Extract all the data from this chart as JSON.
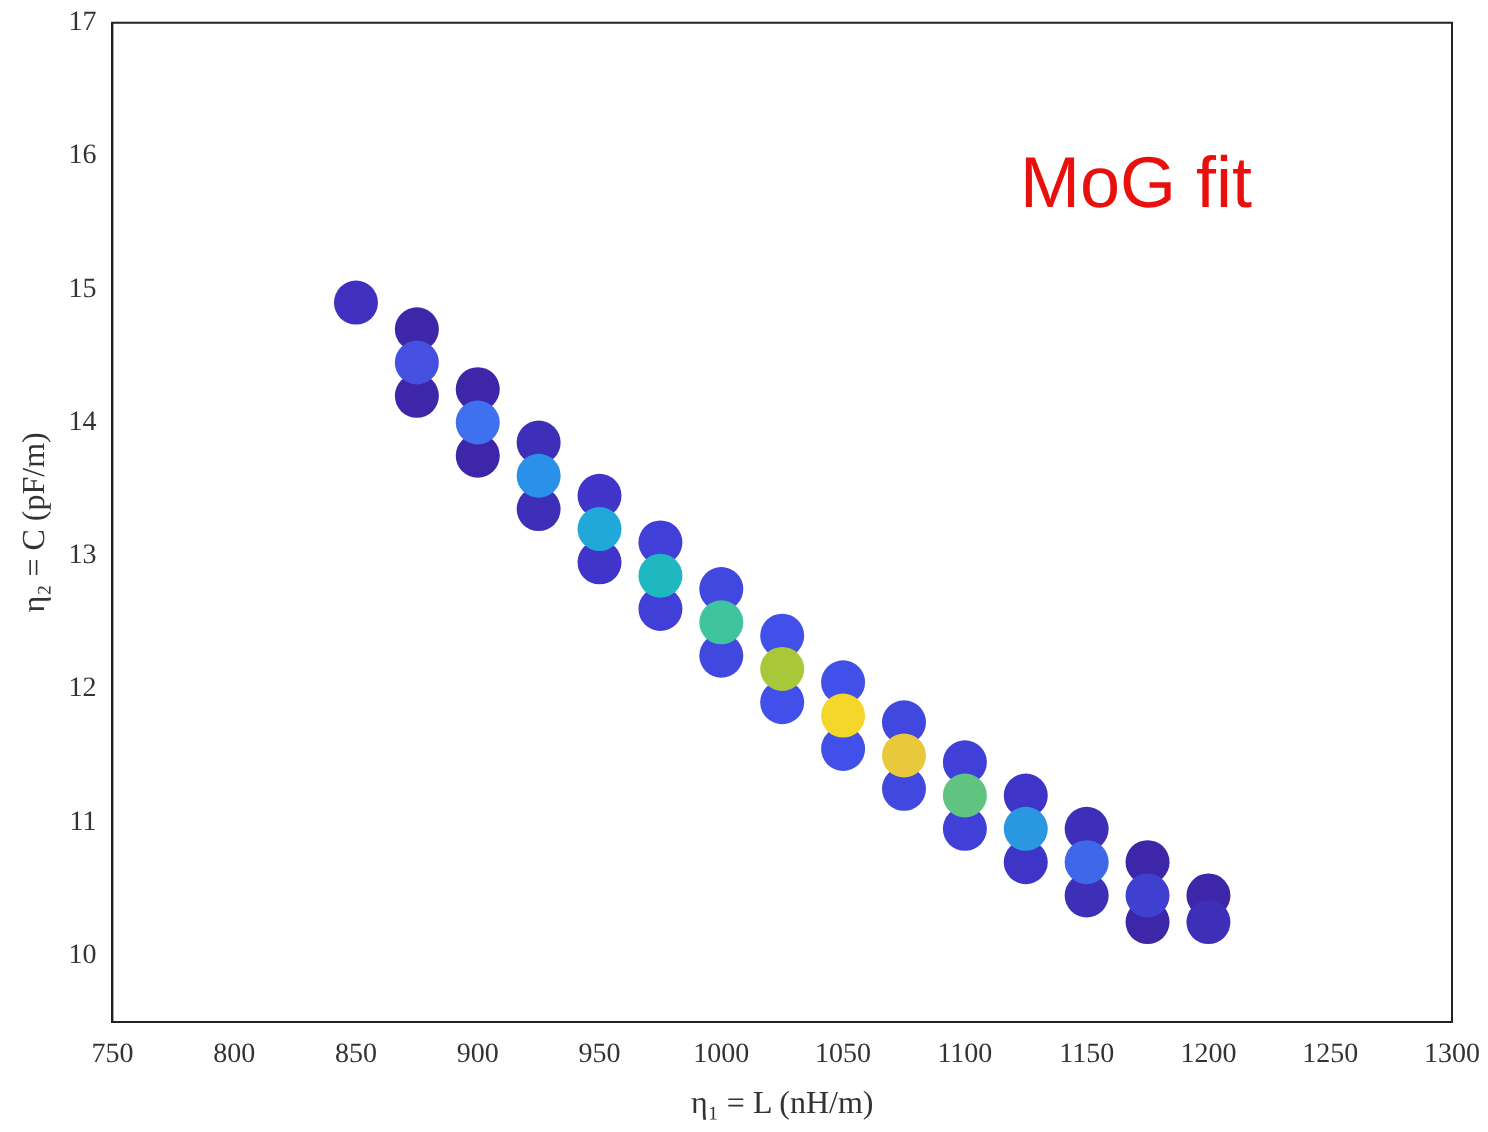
{
  "chart_data": {
    "type": "scatter",
    "xlabel": "η₁ = L (nH/m)",
    "ylabel": "η₂ = C (pF/m)",
    "annotations": [
      "MoG fit"
    ],
    "marker": "circle",
    "x": [
      875,
      900,
      925,
      950,
      975,
      1000,
      1025,
      1050,
      1075,
      1100,
      1125,
      1150,
      1175,
      1200,
      875,
      900,
      925,
      950,
      975,
      1000,
      1025,
      1050,
      1075,
      1100,
      1125,
      1150,
      1175,
      850,
      875,
      900,
      925,
      950,
      975,
      1000,
      1025,
      1050,
      1075,
      1100,
      1125,
      1150,
      1175,
      1200
    ],
    "values": [
      14.7,
      14.25,
      13.85,
      13.45,
      13.1,
      12.75,
      12.4,
      12.05,
      11.75,
      11.45,
      11.2,
      10.95,
      10.7,
      10.45,
      14.2,
      13.75,
      13.35,
      12.95,
      12.6,
      12.25,
      11.9,
      11.55,
      11.25,
      10.95,
      10.7,
      10.45,
      10.25,
      14.9,
      14.45,
      14.0,
      13.6,
      13.2,
      12.85,
      12.5,
      12.15,
      11.8,
      11.5,
      11.2,
      10.95,
      10.7,
      10.45,
      10.25
    ],
    "colors": [
      "#3e26a8",
      "#3e26a8",
      "#3e2fb8",
      "#4035c8",
      "#4040d8",
      "#4048e0",
      "#4050e8",
      "#4050e8",
      "#4048e0",
      "#4040d8",
      "#3e35c8",
      "#3e2fb8",
      "#3e26a8",
      "#3e26a8",
      "#3e26a8",
      "#3e26a8",
      "#3e2fb8",
      "#4035c8",
      "#4040d8",
      "#4048e0",
      "#4050e8",
      "#4050e8",
      "#4048e0",
      "#4040d8",
      "#3e35c8",
      "#3e2fb8",
      "#3e26a8",
      "#3f30c0",
      "#4650e0",
      "#3f70f0",
      "#2a90e8",
      "#1fa8d8",
      "#20b8c0",
      "#40c4a0",
      "#a8c83a",
      "#f5d62a",
      "#e8c93c",
      "#60c480",
      "#2a98e0",
      "#3f68e8",
      "#4040d0",
      "#3e2fb8"
    ],
    "xlim": [
      750,
      1300
    ],
    "xticks": [
      750,
      800,
      850,
      900,
      950,
      1000,
      1050,
      1100,
      1150,
      1200,
      1250,
      1300
    ],
    "ylim": [
      9.5,
      17
    ],
    "yticks": [
      10,
      11,
      12,
      13,
      14,
      15,
      16,
      17
    ],
    "grid": false
  }
}
